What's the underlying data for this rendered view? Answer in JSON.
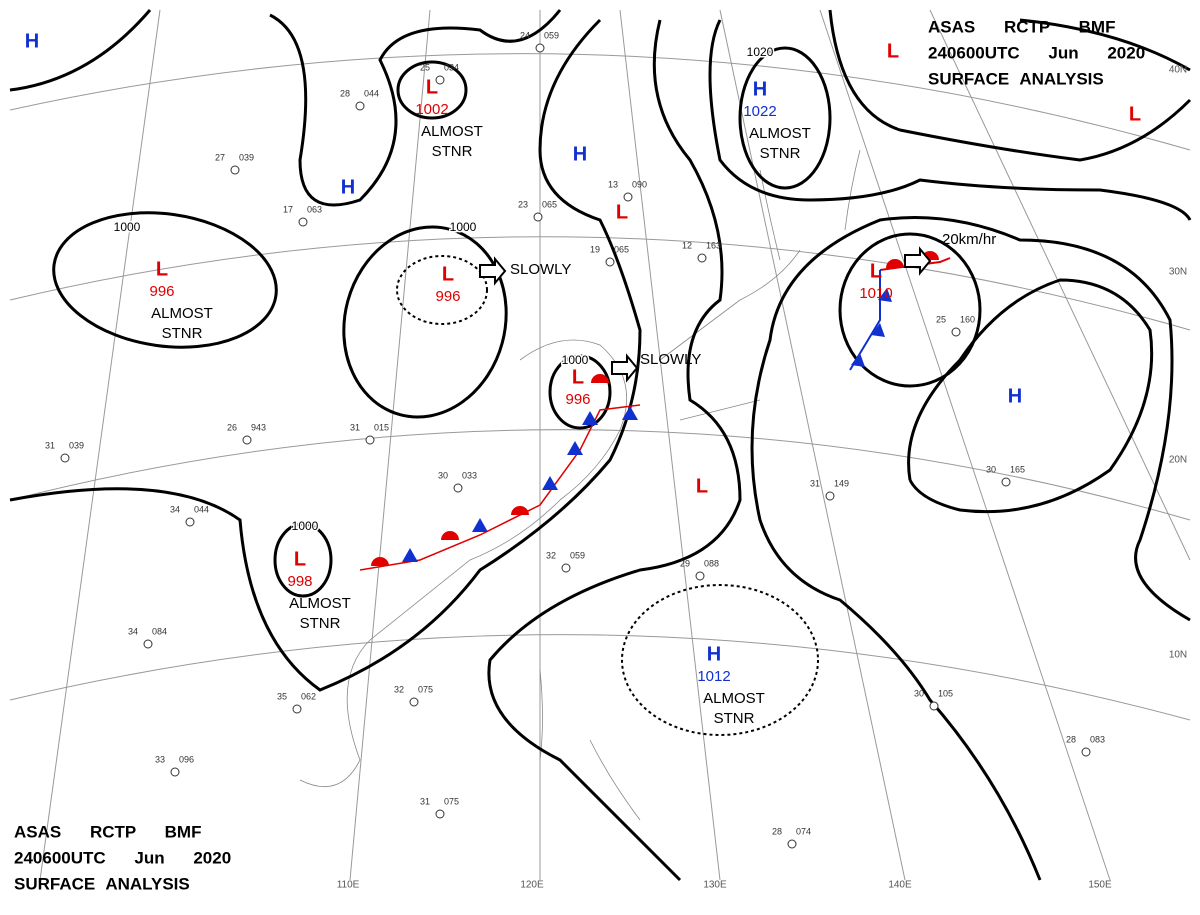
{
  "header": {
    "line1": "ASAS RCTP BMF",
    "line2": "240600UTC Jun 2020",
    "line3": "SURFACE ANALYSIS"
  },
  "colors": {
    "high": "#1030d0",
    "low": "#e00000"
  },
  "pressure_systems": [
    {
      "symbol": "H",
      "kind": "high"
    },
    {
      "symbol": "L",
      "kind": "low",
      "pressure": "1002",
      "note": [
        "ALMOST",
        "STNR"
      ]
    },
    {
      "symbol": "H",
      "kind": "high"
    },
    {
      "symbol": "L",
      "kind": "low",
      "pressure": "996",
      "note": [
        "ALMOST",
        "STNR"
      ]
    },
    {
      "symbol": "L",
      "kind": "low",
      "pressure": "996",
      "motion": "SLOWLY"
    },
    {
      "symbol": "H",
      "kind": "high"
    },
    {
      "symbol": "L",
      "kind": "low"
    },
    {
      "symbol": "H",
      "kind": "high",
      "pressure": "1022",
      "note": [
        "ALMOST",
        "STNR"
      ]
    },
    {
      "symbol": "L",
      "kind": "low"
    },
    {
      "symbol": "L",
      "kind": "low"
    },
    {
      "symbol": "L",
      "kind": "low",
      "pressure": "1010",
      "motion": "20km/hr"
    },
    {
      "symbol": "L",
      "kind": "low",
      "pressure": "996",
      "motion": "SLOWLY"
    },
    {
      "symbol": "H",
      "kind": "high"
    },
    {
      "symbol": "L",
      "kind": "low"
    },
    {
      "symbol": "L",
      "kind": "low",
      "pressure": "998",
      "note": [
        "ALMOST",
        "STNR"
      ]
    },
    {
      "symbol": "H",
      "kind": "high",
      "pressure": "1012",
      "note": [
        "ALMOST",
        "STNR"
      ]
    }
  ],
  "isobar_labels": [
    "1000",
    "1000",
    "1020",
    "1000",
    "1000"
  ],
  "latitude_labels": [
    "40N",
    "30N",
    "20N",
    "10N"
  ],
  "longitude_labels": [
    "110E",
    "120E",
    "130E",
    "140E",
    "150E"
  ],
  "stations": [
    {
      "temp": "24",
      "pressure": "059"
    },
    {
      "temp": "25",
      "pressure": "034"
    },
    {
      "temp": "28",
      "pressure": "044"
    },
    {
      "temp": "27",
      "pressure": "039"
    },
    {
      "temp": "17",
      "pressure": "063"
    },
    {
      "temp": "23",
      "pressure": "065"
    },
    {
      "temp": "13",
      "pressure": "090"
    },
    {
      "temp": "31",
      "pressure": "015"
    },
    {
      "temp": "30",
      "pressure": "033"
    },
    {
      "temp": "34",
      "pressure": "044"
    },
    {
      "temp": "31",
      "pressure": "039"
    },
    {
      "temp": "26",
      "pressure": "943"
    },
    {
      "temp": "31",
      "pressure": "149"
    },
    {
      "temp": "30",
      "pressure": "165"
    },
    {
      "temp": "32",
      "pressure": "059"
    },
    {
      "temp": "29",
      "pressure": "088"
    },
    {
      "temp": "34",
      "pressure": "084"
    },
    {
      "temp": "35",
      "pressure": "062"
    },
    {
      "temp": "32",
      "pressure": "075"
    },
    {
      "temp": "33",
      "pressure": "096"
    },
    {
      "temp": "31",
      "pressure": "075"
    },
    {
      "temp": "30",
      "pressure": "105"
    },
    {
      "temp": "28",
      "pressure": "083"
    },
    {
      "temp": "28",
      "pressure": "074"
    },
    {
      "temp": "25",
      "pressure": "160"
    },
    {
      "temp": "19",
      "pressure": "065"
    },
    {
      "temp": "12",
      "pressure": "163"
    }
  ]
}
